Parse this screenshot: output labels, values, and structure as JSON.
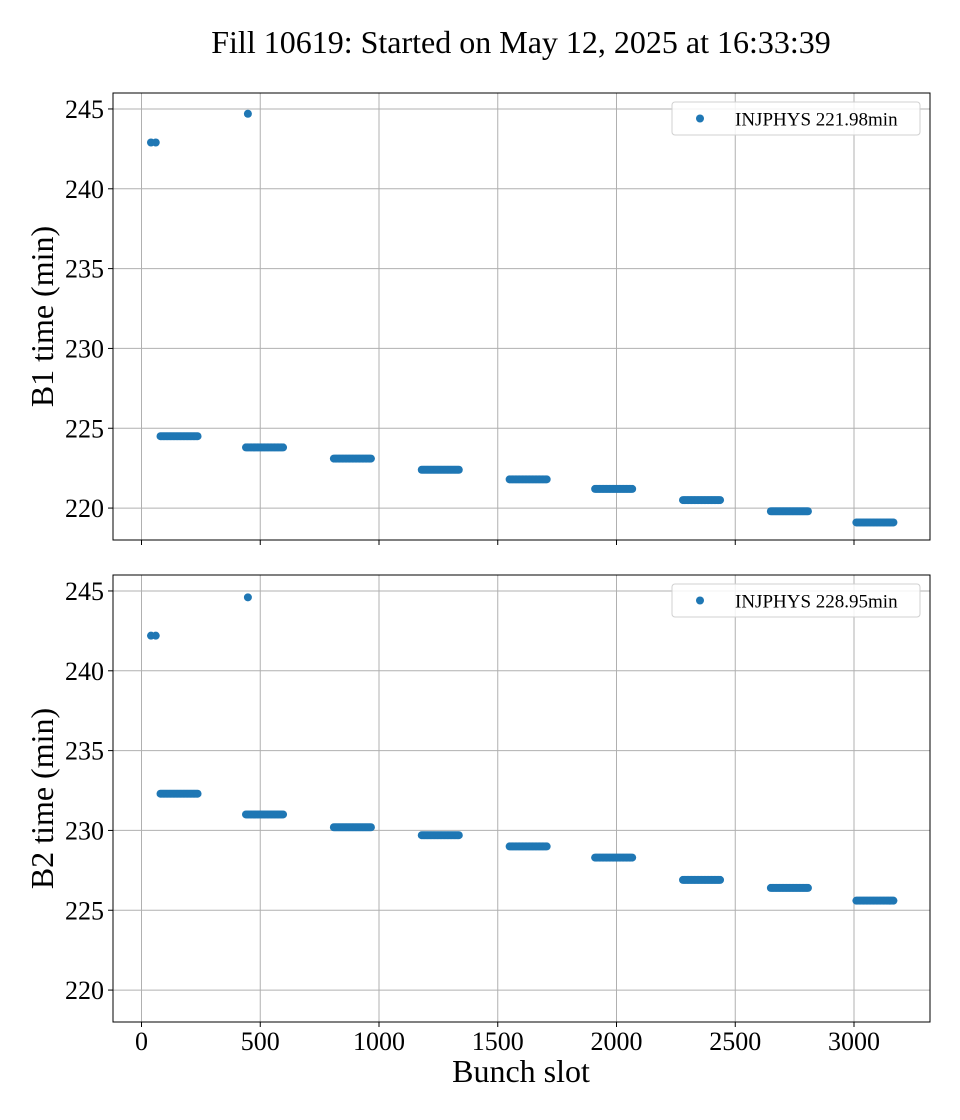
{
  "figure": {
    "title": "Fill 10619: Started on May 12, 2025 at 16:33:39",
    "xlabel": "Bunch slot"
  },
  "colors": {
    "series": "#1f77b4",
    "grid": "#b0b0b0"
  },
  "chart_data": [
    {
      "type": "scatter",
      "ylabel": "B1 time (min)",
      "xlim": [
        -120,
        3320
      ],
      "ylim": [
        218,
        246
      ],
      "xticks": [
        0,
        500,
        1000,
        1500,
        2000,
        2500,
        3000
      ],
      "yticks": [
        220,
        225,
        230,
        235,
        240,
        245
      ],
      "grid": true,
      "legend_position": "top-right",
      "series": [
        {
          "name": "INJPHYS 221.98min",
          "points": [
            [
              40,
              242.9
            ],
            [
              60,
              242.9
            ],
            [
              448,
              244.7
            ]
          ],
          "trains": [
            {
              "x_start": 80,
              "x_end": 240,
              "y": 224.5
            },
            {
              "x_start": 440,
              "x_end": 600,
              "y": 223.8
            },
            {
              "x_start": 810,
              "x_end": 970,
              "y": 223.1
            },
            {
              "x_start": 1180,
              "x_end": 1340,
              "y": 222.4
            },
            {
              "x_start": 1550,
              "x_end": 1710,
              "y": 221.8
            },
            {
              "x_start": 1910,
              "x_end": 2070,
              "y": 221.2
            },
            {
              "x_start": 2280,
              "x_end": 2440,
              "y": 220.5
            },
            {
              "x_start": 2650,
              "x_end": 2810,
              "y": 219.8
            },
            {
              "x_start": 3010,
              "x_end": 3170,
              "y": 219.1
            }
          ]
        }
      ]
    },
    {
      "type": "scatter",
      "ylabel": "B2 time (min)",
      "xlim": [
        -120,
        3320
      ],
      "ylim": [
        218,
        246
      ],
      "xticks": [
        0,
        500,
        1000,
        1500,
        2000,
        2500,
        3000
      ],
      "yticks": [
        220,
        225,
        230,
        235,
        240,
        245
      ],
      "grid": true,
      "legend_position": "top-right",
      "series": [
        {
          "name": "INJPHYS 228.95min",
          "points": [
            [
              40,
              242.2
            ],
            [
              60,
              242.2
            ],
            [
              448,
              244.6
            ]
          ],
          "trains": [
            {
              "x_start": 80,
              "x_end": 240,
              "y": 232.3
            },
            {
              "x_start": 440,
              "x_end": 600,
              "y": 231.0
            },
            {
              "x_start": 810,
              "x_end": 970,
              "y": 230.2
            },
            {
              "x_start": 1180,
              "x_end": 1340,
              "y": 229.7
            },
            {
              "x_start": 1550,
              "x_end": 1710,
              "y": 229.0
            },
            {
              "x_start": 1910,
              "x_end": 2070,
              "y": 228.3
            },
            {
              "x_start": 2280,
              "x_end": 2440,
              "y": 226.9
            },
            {
              "x_start": 2650,
              "x_end": 2810,
              "y": 226.4
            },
            {
              "x_start": 3010,
              "x_end": 3170,
              "y": 225.6
            }
          ]
        }
      ]
    }
  ]
}
